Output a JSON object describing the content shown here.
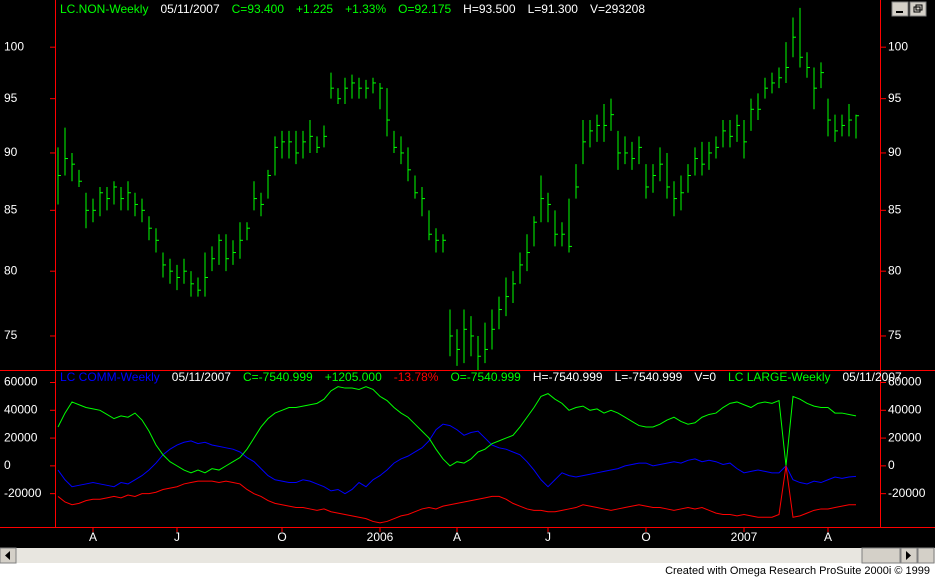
{
  "chart_data": [
    {
      "type": "hlc",
      "name": "LC.NON-Weekly",
      "color": "#00ff00",
      "info": [
        {
          "text": "05/11/2007",
          "color": "#ffffff"
        },
        {
          "text": "C=93.400",
          "color": "#00ff00"
        },
        {
          "text": "+1.225",
          "color": "#00ff00"
        },
        {
          "text": "+1.33%",
          "color": "#00ff00"
        },
        {
          "text": "O=92.175",
          "color": "#00ff00"
        },
        {
          "text": "H=93.500",
          "color": "#ffffff"
        },
        {
          "text": "L=91.300",
          "color": "#ffffff"
        },
        {
          "text": "V=293208",
          "color": "#ffffff"
        }
      ],
      "categories": [
        null,
        null,
        null,
        null,
        null,
        "A",
        null,
        null,
        null,
        null,
        null,
        null,
        null,
        null,
        null,
        null,
        null,
        "J",
        null,
        null,
        null,
        null,
        null,
        null,
        null,
        null,
        null,
        null,
        null,
        null,
        null,
        null,
        "O",
        null,
        null,
        null,
        null,
        null,
        null,
        null,
        null,
        null,
        null,
        null,
        null,
        null,
        "2006",
        null,
        null,
        null,
        null,
        null,
        null,
        null,
        null,
        null,
        null,
        "A",
        null,
        null,
        null,
        null,
        null,
        null,
        null,
        null,
        null,
        null,
        null,
        null,
        "J",
        null,
        null,
        null,
        null,
        null,
        null,
        null,
        null,
        null,
        null,
        null,
        null,
        null,
        "O",
        null,
        null,
        null,
        null,
        null,
        null,
        null,
        null,
        null,
        null,
        null,
        null,
        null,
        "2007",
        null,
        null,
        null,
        null,
        null,
        null,
        null,
        null,
        null,
        null,
        null,
        "A",
        null,
        null,
        null,
        null
      ],
      "high": [
        90.5,
        92.3,
        90,
        88.5,
        86.5,
        86,
        87,
        87,
        87.5,
        87,
        87.5,
        86.5,
        86,
        84.5,
        83.5,
        81.5,
        81,
        80.5,
        81,
        80,
        79.5,
        81.5,
        82,
        83,
        83,
        82.5,
        84,
        84,
        87.5,
        86.5,
        88.5,
        91.5,
        92,
        92,
        92,
        92,
        93,
        91.5,
        92.5,
        97.5,
        96,
        97,
        97.3,
        97,
        96.8,
        97,
        96.5,
        96,
        92,
        91.5,
        90.5,
        88,
        87,
        85,
        83.5,
        83,
        77,
        75.5,
        77,
        76.5,
        75,
        76,
        77,
        78,
        79.5,
        80,
        81.5,
        83,
        84.5,
        88,
        86.5,
        85,
        84,
        86,
        89,
        93,
        93,
        93.5,
        94.5,
        95,
        92,
        91.5,
        91,
        91.5,
        89,
        89,
        90.5,
        90,
        87.5,
        88,
        89,
        90.5,
        91,
        91,
        91.5,
        93,
        93,
        93.5,
        93,
        95,
        95.5,
        97,
        97.5,
        98,
        100.5,
        103,
        104,
        99.5,
        98,
        98.5,
        95,
        93.5,
        93.5,
        94.5,
        93.5
      ],
      "low": [
        85.5,
        88,
        87.5,
        87,
        83.5,
        84,
        84.5,
        85,
        85.5,
        85,
        85,
        84.5,
        84,
        82.5,
        81.5,
        79.5,
        79,
        78.5,
        79,
        78,
        78,
        78,
        80,
        80.5,
        80,
        80.5,
        81,
        82.5,
        85,
        84.5,
        86,
        88,
        89.5,
        89.5,
        89,
        89.5,
        90,
        90,
        90.5,
        95,
        94.5,
        94.5,
        95,
        95,
        95,
        95.5,
        94,
        91.5,
        90,
        89,
        87.5,
        86,
        84.5,
        82.5,
        81.5,
        81.5,
        73.5,
        72.8,
        73,
        73.5,
        72.5,
        73,
        74,
        75.5,
        76.5,
        77.5,
        79,
        80,
        82,
        84,
        84,
        82,
        82,
        81.5,
        86,
        89,
        90.5,
        91,
        91,
        92,
        88.5,
        89,
        88.5,
        89,
        86,
        86.5,
        87.5,
        86,
        84.5,
        85,
        86.5,
        88,
        88,
        88.5,
        89.5,
        90.5,
        90.5,
        91,
        89.5,
        92,
        93,
        95,
        95.5,
        96,
        96.5,
        99,
        98,
        97,
        94,
        96,
        91.5,
        91,
        91.5,
        91.5,
        91.3
      ],
      "close": [
        88,
        89.5,
        89,
        87.5,
        85,
        85,
        86.5,
        86,
        87,
        86,
        86.5,
        85.5,
        85,
        83.5,
        82.5,
        80.5,
        80,
        79.5,
        80,
        79,
        78.5,
        79.5,
        81,
        82.5,
        81,
        81.5,
        82.5,
        83.5,
        86,
        85.5,
        88,
        90.5,
        91,
        91,
        90,
        91,
        91.5,
        90.5,
        91.5,
        96,
        95,
        96,
        96.5,
        96,
        96,
        96.5,
        96,
        93,
        90.5,
        90,
        88.5,
        86.5,
        86,
        83,
        82.5,
        82.5,
        75,
        74,
        75.5,
        75,
        73.5,
        74,
        75.5,
        77,
        78,
        79,
        80.5,
        81.5,
        84,
        86,
        85.5,
        83,
        83,
        82,
        87,
        91,
        92,
        92.5,
        92.5,
        93.5,
        90,
        90,
        89.5,
        90.5,
        87,
        88,
        89,
        87,
        86,
        86.5,
        88,
        89.5,
        89,
        90,
        90.5,
        92,
        91.5,
        92.5,
        91,
        94,
        94,
        96,
        96.5,
        97,
        98,
        101,
        99,
        98,
        96,
        97.5,
        93,
        92,
        92.5,
        93,
        93.4
      ],
      "ylim": [
        72.5,
        104.5
      ],
      "yticks": [
        75,
        80,
        85,
        90,
        95,
        100
      ],
      "log": true,
      "grid": false
    },
    {
      "type": "line",
      "series": [
        {
          "name": "LC COMM-Weekly",
          "color": "#0000ff",
          "info": [
            {
              "text": "05/11/2007",
              "color": "#ffffff"
            },
            {
              "text": "C=-7540.999",
              "color": "#00ff00"
            },
            {
              "text": "+1205.000",
              "color": "#00ff00"
            },
            {
              "text": "-13.78%",
              "color": "#ff0000"
            },
            {
              "text": "O=-7540.999",
              "color": "#00ff00"
            },
            {
              "text": "H=-7540.999",
              "color": "#ffffff"
            },
            {
              "text": "L=-7540.999",
              "color": "#ffffff"
            },
            {
              "text": "V=0",
              "color": "#ffffff"
            }
          ],
          "values": [
            -3000,
            -10000,
            -15000,
            -14000,
            -13000,
            -12000,
            -13000,
            -14000,
            -15000,
            -12000,
            -13000,
            -10000,
            -7000,
            -3000,
            2000,
            8000,
            12000,
            15000,
            17000,
            18000,
            16000,
            17000,
            15000,
            14000,
            13000,
            12000,
            10000,
            6000,
            3000,
            -2000,
            -7000,
            -10000,
            -11000,
            -12000,
            -12000,
            -10000,
            -11000,
            -13000,
            -15000,
            -18000,
            -17000,
            -20000,
            -17000,
            -12000,
            -15000,
            -10000,
            -7000,
            -3000,
            2000,
            5000,
            7000,
            10000,
            13000,
            18000,
            26000,
            30000,
            29000,
            26000,
            22000,
            24000,
            25000,
            20000,
            15000,
            13000,
            12000,
            10000,
            8000,
            3000,
            -3000,
            -10000,
            -15000,
            -10000,
            -5000,
            -7000,
            -8000,
            -7000,
            -6000,
            -5000,
            -4000,
            -3000,
            -2000,
            0,
            1000,
            2000,
            2000,
            0,
            1000,
            2000,
            3000,
            2000,
            4000,
            5000,
            3000,
            4000,
            3000,
            1000,
            2000,
            -2000,
            -5000,
            -4000,
            -3000,
            -4000,
            -5000,
            -5000,
            0,
            -10000,
            -12000,
            -13000,
            -11000,
            -12000,
            -10000,
            -8000,
            -9000,
            -8000,
            -7540.999
          ]
        },
        {
          "name": "LC LARGE-Weekly",
          "color": "#00ff00",
          "info": [
            {
              "text": "05/11/2007",
              "color": "#ffffff"
            }
          ],
          "values": [
            28000,
            38000,
            46000,
            44000,
            42000,
            41000,
            40000,
            37000,
            34000,
            36000,
            35000,
            38000,
            33000,
            25000,
            15000,
            8000,
            3000,
            0,
            -3000,
            -5000,
            -3000,
            -5000,
            -2000,
            -3000,
            0,
            3000,
            6000,
            12000,
            20000,
            28000,
            34000,
            38000,
            40000,
            42000,
            42000,
            43000,
            44000,
            45000,
            48000,
            54000,
            57000,
            56000,
            56000,
            55000,
            57000,
            55000,
            50000,
            47000,
            42000,
            38000,
            35000,
            30000,
            25000,
            20000,
            12000,
            5000,
            0,
            3000,
            2000,
            5000,
            10000,
            12000,
            16000,
            18000,
            20000,
            22000,
            28000,
            35000,
            42000,
            50000,
            52000,
            48000,
            45000,
            40000,
            42000,
            43000,
            40000,
            41000,
            38000,
            40000,
            38000,
            35000,
            32000,
            29000,
            28000,
            28000,
            30000,
            33000,
            35000,
            32000,
            30000,
            31000,
            35000,
            37000,
            38000,
            42000,
            45000,
            46000,
            44000,
            42000,
            45000,
            46000,
            45000,
            47000,
            0,
            50000,
            48000,
            45000,
            43000,
            42000,
            42000,
            38000,
            38000,
            37000,
            36000
          ]
        },
        {
          "color": "#ff0000",
          "values": [
            -22000,
            -26000,
            -28000,
            -27000,
            -25000,
            -24000,
            -24000,
            -23000,
            -22000,
            -23000,
            -21000,
            -22000,
            -20000,
            -20000,
            -19000,
            -17000,
            -16000,
            -15000,
            -13000,
            -12000,
            -11000,
            -11000,
            -11000,
            -12000,
            -11000,
            -12000,
            -13000,
            -17000,
            -20000,
            -22000,
            -25000,
            -27000,
            -28000,
            -29000,
            -30000,
            -30000,
            -31000,
            -32000,
            -31000,
            -33000,
            -34000,
            -35000,
            -36000,
            -37000,
            -38000,
            -40000,
            -41000,
            -40000,
            -38000,
            -36000,
            -35000,
            -33000,
            -31000,
            -30000,
            -31000,
            -29000,
            -28000,
            -27000,
            -26000,
            -25000,
            -24000,
            -23000,
            -22000,
            -22000,
            -24000,
            -27000,
            -29000,
            -31000,
            -32000,
            -32000,
            -33000,
            -33000,
            -32000,
            -31000,
            -30000,
            -28000,
            -29000,
            -30000,
            -31000,
            -32000,
            -31000,
            -30000,
            -29000,
            -28000,
            -29000,
            -30000,
            -30000,
            -31000,
            -32000,
            -31000,
            -30000,
            -31000,
            -30000,
            -32000,
            -34000,
            -35000,
            -35000,
            -36000,
            -35000,
            -36000,
            -37000,
            -37000,
            -37000,
            -35000,
            0,
            -37000,
            -36000,
            -34000,
            -32000,
            -31000,
            -31000,
            -30000,
            -29000,
            -28000,
            -28000
          ]
        }
      ],
      "ylim": [
        -44000,
        69000
      ],
      "yticks": [
        -20000,
        0,
        20000,
        40000,
        60000
      ],
      "grid": false
    }
  ],
  "footer": "Created with Omega Research ProSuite 2000i © 1999"
}
